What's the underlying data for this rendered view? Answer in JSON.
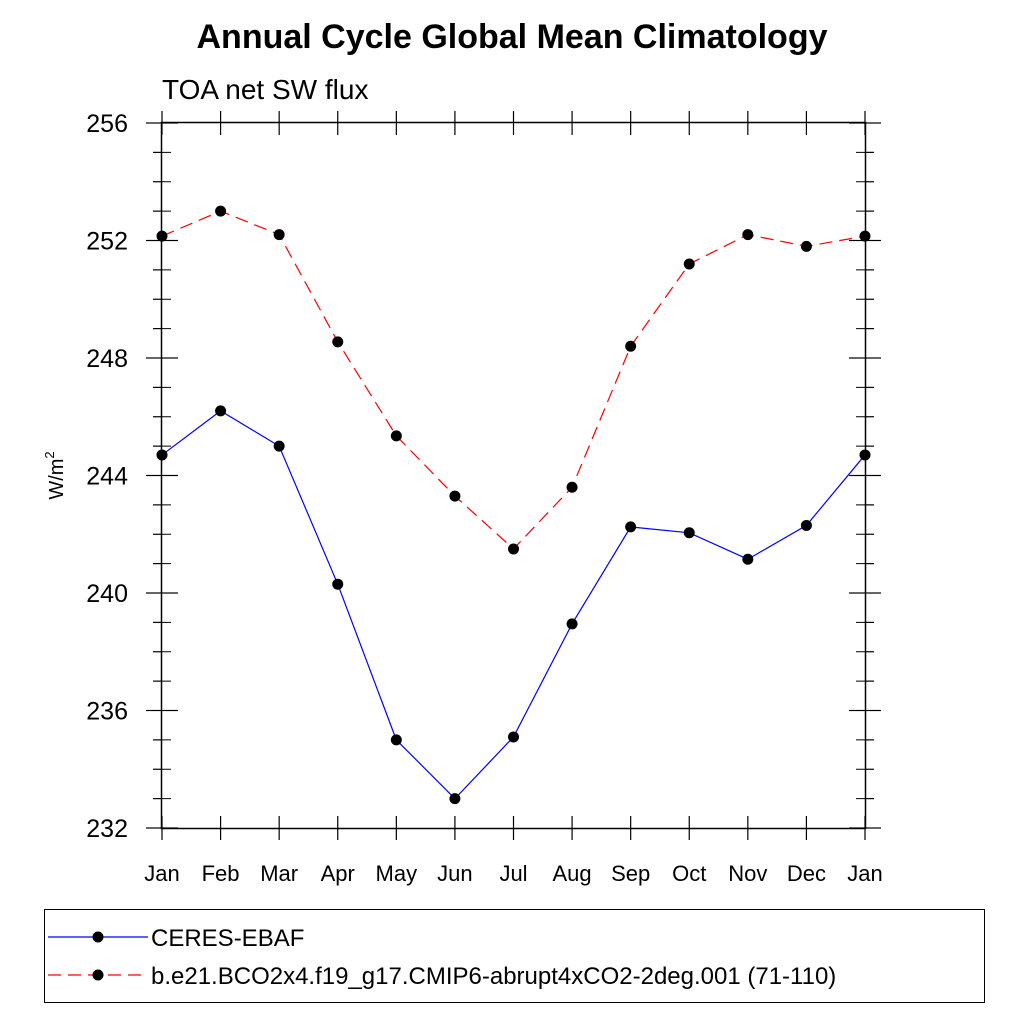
{
  "chart_data": {
    "type": "line",
    "title": "Annual Cycle Global Mean Climatology",
    "subtitle": "TOA net SW flux",
    "ylabel_base": "W/m",
    "ylabel_sup": "2",
    "xlabel": "",
    "ylim": [
      232,
      256
    ],
    "yticks": [
      "232",
      "236",
      "240",
      "244",
      "248",
      "252",
      "256"
    ],
    "categories": [
      "Jan",
      "Feb",
      "Mar",
      "Apr",
      "May",
      "Jun",
      "Jul",
      "Aug",
      "Sep",
      "Oct",
      "Nov",
      "Dec",
      "Jan"
    ],
    "series": [
      {
        "name": "CERES-EBAF",
        "color": "#0000ff",
        "dash": "solid",
        "values": [
          244.7,
          246.2,
          245.0,
          240.3,
          235.0,
          233.0,
          235.1,
          238.95,
          242.25,
          242.05,
          241.15,
          242.3,
          244.7
        ]
      },
      {
        "name": "b.e21.BCO2x4.f19_g17.CMIP6-abrupt4xCO2-2deg.001 (71-110)",
        "color": "#ff0000",
        "dash": "dashed",
        "values": [
          252.15,
          253.0,
          252.2,
          248.55,
          245.35,
          243.3,
          241.5,
          243.6,
          248.4,
          251.2,
          252.2,
          251.8,
          252.15
        ]
      }
    ],
    "legend_position": "bottom"
  }
}
